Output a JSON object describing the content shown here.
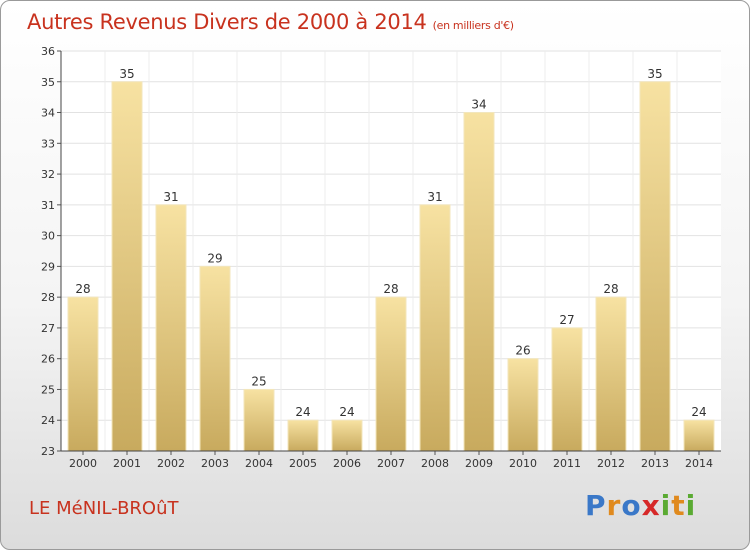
{
  "header": {
    "title": "Autres Revenus Divers de 2000 à 2014",
    "subtitle": "(en milliers d'€)"
  },
  "footer": {
    "town": "LE MéNIL-BROûT",
    "brand_letters": [
      "P",
      "r",
      "o",
      "x",
      "i",
      "t",
      "i"
    ],
    "brand_colors": [
      "#3a78c8",
      "#e08a1e",
      "#3a78c8",
      "#d62828",
      "#5aaa32",
      "#e08a1e",
      "#5aaa32"
    ]
  },
  "chart_data": {
    "type": "bar",
    "categories": [
      "2000",
      "2001",
      "2002",
      "2003",
      "2004",
      "2005",
      "2006",
      "2007",
      "2008",
      "2009",
      "2010",
      "2011",
      "2012",
      "2013",
      "2014"
    ],
    "values": [
      28,
      35,
      31,
      29,
      25,
      24,
      24,
      28,
      31,
      34,
      26,
      27,
      28,
      35,
      24
    ],
    "ylim": [
      23,
      36
    ],
    "yticks": [
      "23",
      "24",
      "25",
      "26",
      "27",
      "28",
      "29",
      "30",
      "31",
      "32",
      "33",
      "34",
      "35",
      "36"
    ],
    "grid": true,
    "bar_color": "#e9d089"
  }
}
